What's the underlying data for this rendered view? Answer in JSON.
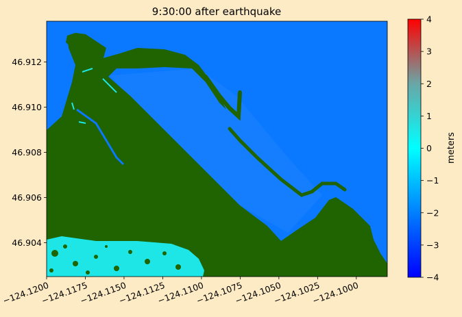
{
  "chart_data": {
    "type": "heatmap",
    "title": "9:30:00 after earthquake",
    "xlabel": "",
    "ylabel": "",
    "xlim": [
      -124.12,
      -124.098
    ],
    "ylim": [
      46.9025,
      46.9138
    ],
    "x_ticks": [
      -124.12,
      -124.1175,
      -124.115,
      -124.1125,
      -124.11,
      -124.1075,
      -124.105,
      -124.1025,
      -124.1
    ],
    "x_tick_labels": [
      "−124.1200",
      "−124.1175",
      "−124.1150",
      "−124.1125",
      "−124.1100",
      "−124.1075",
      "−124.1050",
      "−124.1025",
      "−124.1000"
    ],
    "y_ticks": [
      46.904,
      46.906,
      46.908,
      46.91,
      46.912
    ],
    "y_tick_labels": [
      "46.904",
      "46.906",
      "46.908",
      "46.910",
      "46.912"
    ],
    "colorbar": {
      "label": "meters",
      "range": [
        -4,
        4
      ],
      "ticks": [
        -4,
        -3,
        -2,
        -1,
        0,
        1,
        2,
        3,
        4
      ],
      "tick_labels": [
        "−4",
        "−3",
        "−2",
        "−1",
        "0",
        "1",
        "2",
        "3",
        "4"
      ],
      "colors": [
        "#0000ff",
        "#00ffff",
        "#ff0000"
      ]
    },
    "colors": {
      "land": "#1f6400",
      "water": "#0a78ff",
      "flooded": "#1ee6e6"
    },
    "grid": false
  }
}
